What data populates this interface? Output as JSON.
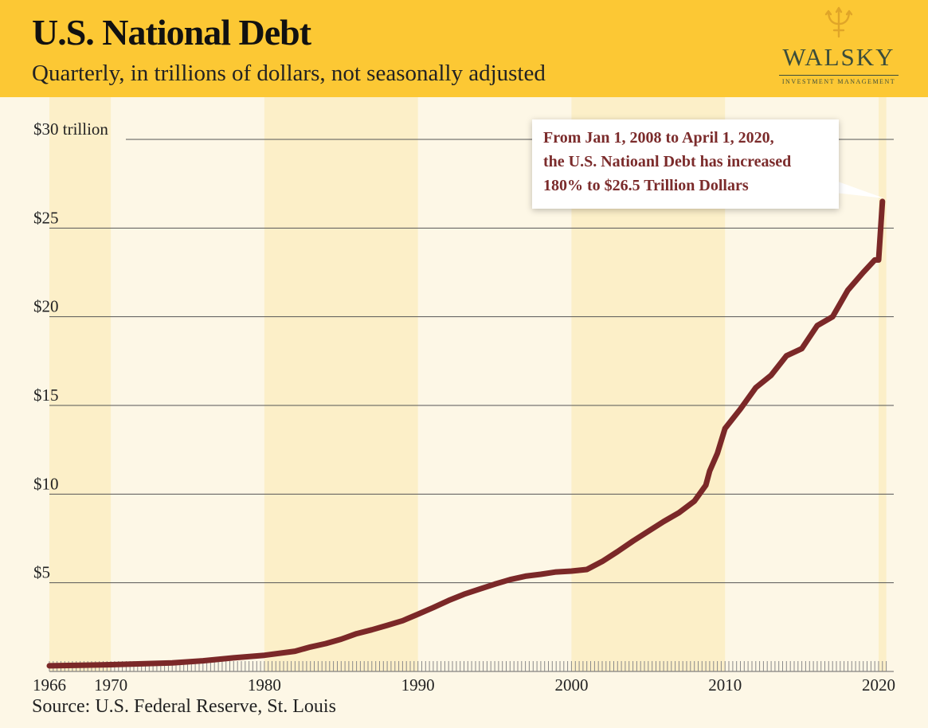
{
  "header": {
    "title": "U.S. National Debt",
    "subtitle": "Quarterly, in trillions of dollars, not seasonally adjusted"
  },
  "logo": {
    "name": "WALSKY",
    "tagline": "INVESTMENT MANAGEMENT",
    "icon": "trident-icon"
  },
  "callout": {
    "lines": [
      "From Jan 1, 2008 to April 1, 2020,",
      "the U.S. Natioanl Debt has increased",
      "180% to $26.5 Trillion Dollars"
    ]
  },
  "source": "Source: U.S. Federal Reserve, St. Louis",
  "colors": {
    "header": "#fcc834",
    "background": "#fdf7e6",
    "band": "#fcefc8",
    "line": "#7b2828",
    "callout_text": "#7b2b2b"
  },
  "chart_data": {
    "type": "line",
    "title": "U.S. National Debt",
    "subtitle": "Quarterly, in trillions of dollars, not seasonally adjusted",
    "xlim": [
      1966,
      2020.5
    ],
    "ylim": [
      0,
      30
    ],
    "x_ticks": [
      {
        "value": 1966,
        "label": "1966"
      },
      {
        "value": 1970,
        "label": "1970"
      },
      {
        "value": 1980,
        "label": "1980"
      },
      {
        "value": 1990,
        "label": "1990"
      },
      {
        "value": 2000,
        "label": "2000"
      },
      {
        "value": 2010,
        "label": "2010"
      },
      {
        "value": 2020,
        "label": "2020"
      }
    ],
    "y_ticks": [
      {
        "value": 5,
        "label": "$5"
      },
      {
        "value": 10,
        "label": "$10"
      },
      {
        "value": 15,
        "label": "$15"
      },
      {
        "value": 20,
        "label": "$20"
      },
      {
        "value": 25,
        "label": "$25"
      },
      {
        "value": 30,
        "label": "$30 trillion"
      }
    ],
    "shaded_periods": [
      [
        1966,
        1970
      ],
      [
        1980,
        1990
      ],
      [
        2000,
        2010
      ],
      [
        2020,
        2020.5
      ]
    ],
    "grid": "horizontal",
    "series": [
      {
        "x": [
          1966,
          1968,
          1970,
          1972,
          1974,
          1976,
          1978,
          1980,
          1982,
          1983,
          1984,
          1985,
          1986,
          1987,
          1988,
          1989,
          1990,
          1991,
          1992,
          1993,
          1994,
          1995,
          1996,
          1997,
          1998,
          1999,
          2000,
          2001,
          2002,
          2003,
          2004,
          2005,
          2006,
          2007,
          2008,
          2008.75,
          2009,
          2009.5,
          2010,
          2011,
          2012,
          2013,
          2014,
          2015,
          2016,
          2017,
          2018,
          2019,
          2019.75,
          2020,
          2020.25
        ],
        "y": [
          0.32,
          0.35,
          0.38,
          0.43,
          0.48,
          0.6,
          0.77,
          0.91,
          1.14,
          1.38,
          1.57,
          1.82,
          2.13,
          2.35,
          2.6,
          2.86,
          3.23,
          3.6,
          4.0,
          4.35,
          4.64,
          4.92,
          5.18,
          5.37,
          5.48,
          5.61,
          5.66,
          5.75,
          6.2,
          6.76,
          7.35,
          7.9,
          8.45,
          8.95,
          9.6,
          10.5,
          11.3,
          12.3,
          13.7,
          14.8,
          16.0,
          16.7,
          17.8,
          18.2,
          19.5,
          20.0,
          21.5,
          22.5,
          23.2,
          23.2,
          26.5
        ]
      }
    ]
  }
}
